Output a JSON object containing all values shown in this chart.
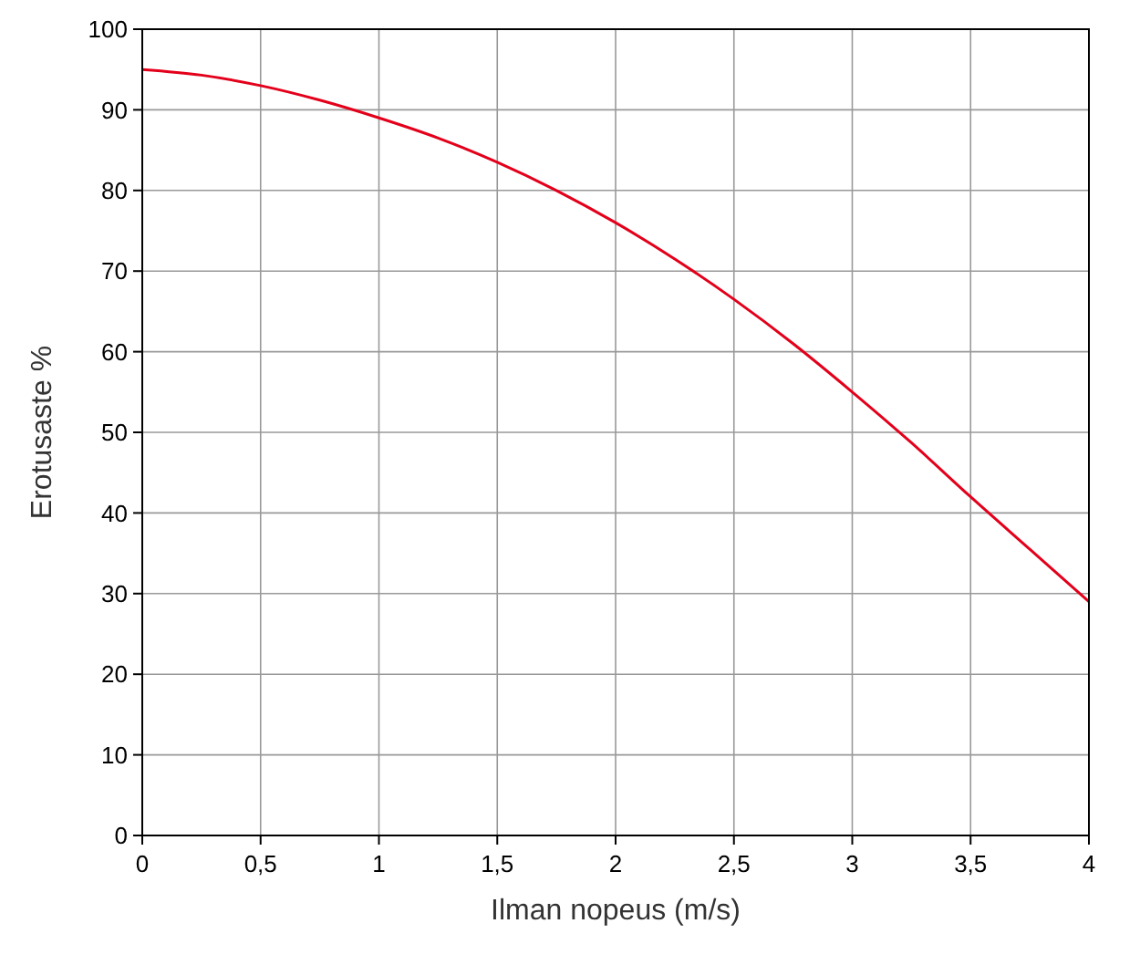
{
  "chart_data": {
    "type": "line",
    "xlabel": "Ilman nopeus (m/s)",
    "ylabel": "Erotusaste %",
    "x": [
      0,
      0.25,
      0.5,
      0.75,
      1,
      1.25,
      1.5,
      1.75,
      2,
      2.25,
      2.5,
      2.75,
      3,
      3.25,
      3.5,
      3.75,
      4
    ],
    "series": [
      {
        "color": "#e3001b",
        "values": [
          95,
          94.3,
          93,
          91.2,
          89,
          86.5,
          83.5,
          80,
          76,
          71.5,
          66.5,
          61,
          55,
          48.7,
          42,
          35.5,
          29
        ]
      }
    ],
    "xlim": [
      0,
      4
    ],
    "ylim": [
      0,
      100
    ],
    "xticks": [
      0,
      {
        "value": 0.5,
        "label": "0,5"
      },
      1,
      {
        "value": 1.5,
        "label": "1,5"
      },
      2,
      {
        "value": 2.5,
        "label": "2,5"
      },
      3,
      {
        "value": 3.5,
        "label": "3,5"
      },
      4
    ],
    "yticks": [
      0,
      10,
      20,
      30,
      40,
      50,
      60,
      70,
      80,
      90,
      100
    ],
    "grid": true,
    "marker": "none",
    "line_style": "solid"
  }
}
